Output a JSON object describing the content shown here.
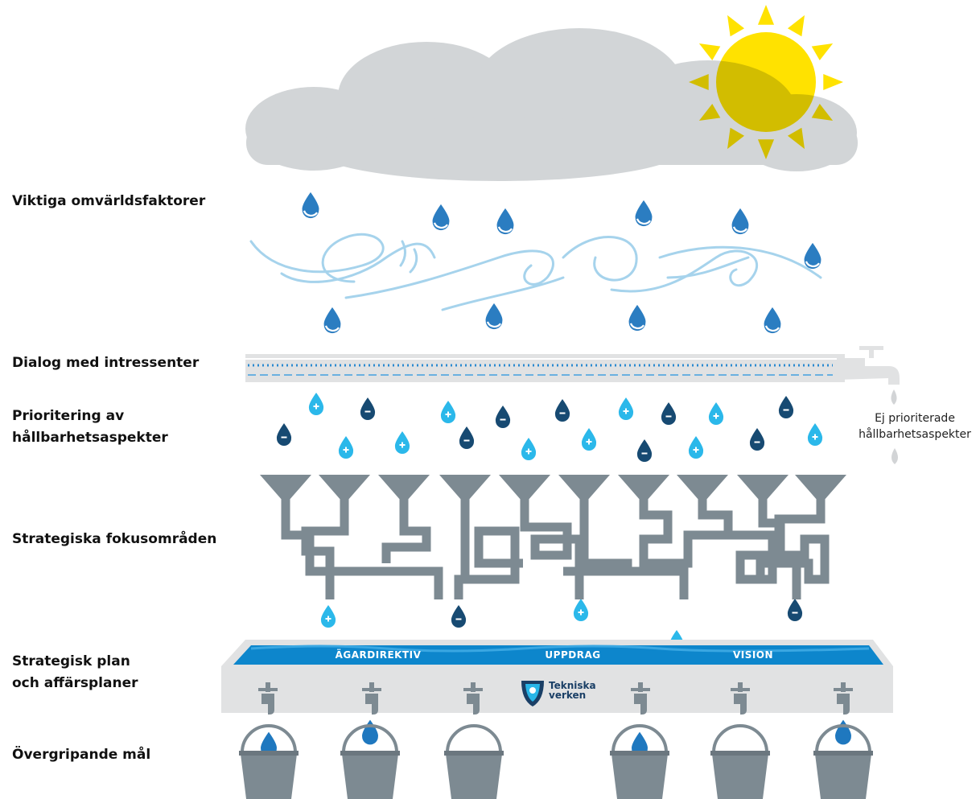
{
  "labels": [
    [
      "Viktiga omvärldsfaktorer"
    ],
    [
      "Dialog med intressenter"
    ],
    [
      "Prioritering av",
      "hållbarhetsaspekter"
    ],
    [
      "Strategiska fokusområden"
    ],
    [
      "Strategisk plan",
      "och affärsplaner"
    ],
    [
      "Övergripande mål"
    ]
  ],
  "side_note": [
    "Ej prioriterade",
    "hållbarhetsaspekter"
  ],
  "trough": [
    "ÄGARDIREKTIV",
    "UPPDRAG",
    "VISION"
  ],
  "logo": [
    "Tekniska",
    "verken"
  ]
}
